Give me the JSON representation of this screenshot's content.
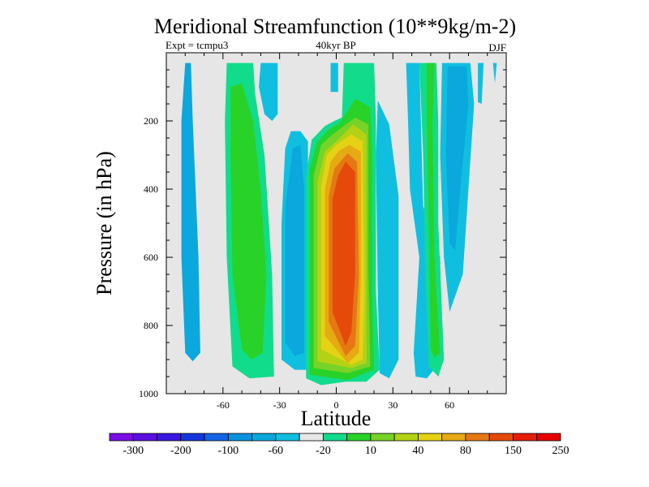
{
  "chart_data": {
    "type": "heatmap",
    "title": "Meridional Streamfunction (10**9kg/m-2)",
    "subtitle_left": "Expt = tcmpu3",
    "subtitle_center": "40kyr BP",
    "subtitle_right": "DJF",
    "xlabel": "Latitude",
    "ylabel": "Pressure (in hPa)",
    "xlim": [
      -90,
      90
    ],
    "ylim": [
      1000,
      0
    ],
    "x_ticks": [
      -60,
      -30,
      0,
      30,
      60
    ],
    "x_tick_labels": [
      "-60",
      "-30",
      "0",
      "30",
      "60"
    ],
    "y_ticks": [
      200,
      400,
      600,
      800,
      1000
    ],
    "y_tick_labels": [
      "200",
      "400",
      "600",
      "800",
      "1000"
    ],
    "plot_background": "#e6e6e6",
    "colorbar": {
      "labels": [
        "-300",
        "-200",
        "-100",
        "-60",
        "-20",
        "10",
        "40",
        "80",
        "150",
        "250"
      ],
      "colors": [
        "#7a0fe6",
        "#5a10e0",
        "#3a18e0",
        "#1438dc",
        "#1464e6",
        "#0a91de",
        "#0aa8dc",
        "#10bfe0",
        "#e6e6e6",
        "#10dc8c",
        "#28d228",
        "#78d228",
        "#b4d214",
        "#e6d214",
        "#e6aa14",
        "#e67814",
        "#e64a0a",
        "#e61e0a",
        "#e60000"
      ]
    },
    "contour_regions": [
      {
        "color_index": 6,
        "points": [
          [
            -80,
            30
          ],
          [
            -77,
            30
          ],
          [
            -76,
            200
          ],
          [
            -73,
            600
          ],
          [
            -72,
            880
          ],
          [
            -76,
            905
          ],
          [
            -80,
            880
          ],
          [
            -82,
            600
          ],
          [
            -82,
            200
          ]
        ]
      },
      {
        "color_index": 9,
        "points": [
          [
            -58,
            30
          ],
          [
            -44,
            30
          ],
          [
            -43,
            120
          ],
          [
            -38,
            300
          ],
          [
            -34,
            650
          ],
          [
            -33,
            950
          ],
          [
            -46,
            955
          ],
          [
            -55,
            920
          ],
          [
            -58,
            600
          ],
          [
            -59,
            200
          ]
        ]
      },
      {
        "color_index": 10,
        "points": [
          [
            -56,
            100
          ],
          [
            -50,
            90
          ],
          [
            -44,
            200
          ],
          [
            -40,
            400
          ],
          [
            -37,
            650
          ],
          [
            -39,
            880
          ],
          [
            -45,
            900
          ],
          [
            -50,
            870
          ],
          [
            -55,
            650
          ],
          [
            -56,
            300
          ]
        ]
      },
      {
        "color_index": 7,
        "points": [
          [
            -40,
            30
          ],
          [
            -31,
            30
          ],
          [
            -31,
            180
          ],
          [
            -34,
            200
          ],
          [
            -38,
            180
          ],
          [
            -41,
            100
          ]
        ]
      },
      {
        "color_index": 7,
        "points": [
          [
            -24,
            230
          ],
          [
            -19,
            230
          ],
          [
            -15,
            260
          ],
          [
            -15,
            930
          ],
          [
            -22,
            930
          ],
          [
            -29,
            900
          ],
          [
            -29,
            500
          ],
          [
            -27,
            280
          ]
        ]
      },
      {
        "color_index": 6,
        "points": [
          [
            -23,
            280
          ],
          [
            -19,
            270
          ],
          [
            -17,
            400
          ],
          [
            -17,
            880
          ],
          [
            -22,
            890
          ],
          [
            -27,
            850
          ],
          [
            -27,
            450
          ]
        ]
      },
      {
        "color_index": 7,
        "points": [
          [
            -3,
            30
          ],
          [
            1,
            30
          ],
          [
            1,
            115
          ],
          [
            -3,
            115
          ]
        ]
      },
      {
        "color_index": 9,
        "points": [
          [
            4,
            30
          ],
          [
            20,
            30
          ],
          [
            21,
            200
          ],
          [
            21,
            700
          ],
          [
            23,
            930
          ],
          [
            16,
            965
          ],
          [
            5,
            965
          ],
          [
            -8,
            975
          ],
          [
            -16,
            955
          ],
          [
            -16,
            360
          ],
          [
            -13,
            255
          ],
          [
            -6,
            215
          ],
          [
            -1,
            200
          ],
          [
            3,
            190
          ]
        ]
      },
      {
        "color_index": 10,
        "points": [
          [
            10,
            135
          ],
          [
            18,
            160
          ],
          [
            19,
            300
          ],
          [
            19,
            700
          ],
          [
            20,
            930
          ],
          [
            6,
            960
          ],
          [
            -14,
            945
          ],
          [
            -14,
            340
          ],
          [
            -10,
            260
          ],
          [
            -4,
            225
          ],
          [
            2,
            205
          ]
        ]
      },
      {
        "color_index": 11,
        "points": [
          [
            10,
            190
          ],
          [
            17,
            210
          ],
          [
            17,
            650
          ],
          [
            18,
            920
          ],
          [
            6,
            940
          ],
          [
            -12,
            925
          ],
          [
            -12,
            360
          ],
          [
            -8,
            270
          ],
          [
            -2,
            240
          ]
        ]
      },
      {
        "color_index": 12,
        "points": [
          [
            9,
            210
          ],
          [
            16,
            240
          ],
          [
            16,
            700
          ],
          [
            16,
            910
          ],
          [
            8,
            925
          ],
          [
            -10,
            905
          ],
          [
            -10,
            380
          ],
          [
            -6,
            290
          ],
          [
            0,
            260
          ]
        ]
      },
      {
        "color_index": 13,
        "points": [
          [
            8,
            240
          ],
          [
            14,
            260
          ],
          [
            15,
            700
          ],
          [
            14,
            900
          ],
          [
            8,
            915
          ],
          [
            -8,
            870
          ],
          [
            -8,
            390
          ],
          [
            -5,
            300
          ],
          [
            0,
            270
          ]
        ]
      },
      {
        "color_index": 14,
        "points": [
          [
            7,
            270
          ],
          [
            13,
            290
          ],
          [
            13,
            650
          ],
          [
            12,
            880
          ],
          [
            6,
            910
          ],
          [
            -6,
            830
          ],
          [
            -6,
            400
          ],
          [
            -3,
            320
          ],
          [
            1,
            290
          ]
        ]
      },
      {
        "color_index": 15,
        "points": [
          [
            6,
            295
          ],
          [
            11,
            320
          ],
          [
            12,
            650
          ],
          [
            10,
            860
          ],
          [
            5,
            890
          ],
          [
            -4,
            790
          ],
          [
            -4,
            420
          ],
          [
            -1,
            340
          ]
        ]
      },
      {
        "color_index": 16,
        "points": [
          [
            5,
            320
          ],
          [
            10,
            350
          ],
          [
            10,
            650
          ],
          [
            8,
            820
          ],
          [
            5,
            860
          ],
          [
            -2,
            760
          ],
          [
            -2,
            430
          ],
          [
            1,
            360
          ]
        ]
      },
      {
        "color_index": 7,
        "points": [
          [
            22,
            140
          ],
          [
            28,
            210
          ],
          [
            33,
            420
          ],
          [
            33,
            900
          ],
          [
            28,
            955
          ],
          [
            23,
            940
          ],
          [
            22,
            700
          ],
          [
            21,
            300
          ]
        ]
      },
      {
        "color_index": 7,
        "points": [
          [
            37,
            30
          ],
          [
            44,
            30
          ],
          [
            46,
            450
          ],
          [
            55,
            600
          ],
          [
            56,
            900
          ],
          [
            48,
            955
          ],
          [
            42,
            950
          ],
          [
            41,
            880
          ],
          [
            44,
            600
          ],
          [
            39,
            400
          ],
          [
            38,
            200
          ]
        ]
      },
      {
        "color_index": 9,
        "points": [
          [
            44,
            30
          ],
          [
            53,
            30
          ],
          [
            54,
            200
          ],
          [
            54,
            500
          ],
          [
            57,
            900
          ],
          [
            54,
            950
          ],
          [
            49,
            920
          ],
          [
            47,
            600
          ],
          [
            46,
            300
          ]
        ]
      },
      {
        "color_index": 10,
        "points": [
          [
            48,
            30
          ],
          [
            52,
            30
          ],
          [
            51,
            200
          ],
          [
            52,
            600
          ],
          [
            55,
            880
          ],
          [
            52,
            895
          ],
          [
            50,
            870
          ],
          [
            49,
            500
          ],
          [
            48,
            200
          ]
        ]
      },
      {
        "color_index": 7,
        "points": [
          [
            56,
            30
          ],
          [
            71,
            30
          ],
          [
            73,
            150
          ],
          [
            70,
            400
          ],
          [
            67,
            650
          ],
          [
            60,
            760
          ],
          [
            57,
            600
          ],
          [
            55,
            300
          ]
        ]
      },
      {
        "color_index": 6,
        "points": [
          [
            59,
            40
          ],
          [
            69,
            40
          ],
          [
            70,
            150
          ],
          [
            66,
            380
          ],
          [
            63,
            580
          ],
          [
            60,
            560
          ],
          [
            58,
            300
          ]
        ]
      },
      {
        "color_index": 7,
        "points": [
          [
            75,
            30
          ],
          [
            78,
            30
          ],
          [
            77,
            150
          ],
          [
            75,
            145
          ]
        ]
      },
      {
        "color_index": 7,
        "points": [
          [
            83,
            30
          ],
          [
            85,
            30
          ],
          [
            84,
            90
          ]
        ]
      }
    ]
  }
}
